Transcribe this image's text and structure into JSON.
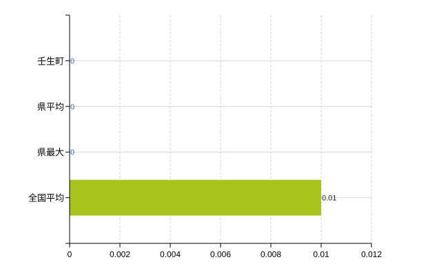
{
  "chart_data": {
    "type": "bar",
    "orientation": "horizontal",
    "categories": [
      "壬生町",
      "県平均",
      "県最大",
      "全国平均"
    ],
    "values": [
      0,
      0,
      0,
      0.01
    ],
    "value_labels": [
      "0",
      "0",
      "0",
      "0.01"
    ],
    "xlim": [
      0,
      0.012
    ],
    "xticks": [
      "0",
      "0.002",
      "0.004",
      "0.006",
      "0.008",
      "0.01",
      "0.012"
    ],
    "grid": true,
    "bar_color": "#a9c31c",
    "label_color_zero": "#1f6fc4",
    "label_color": "#222222"
  }
}
